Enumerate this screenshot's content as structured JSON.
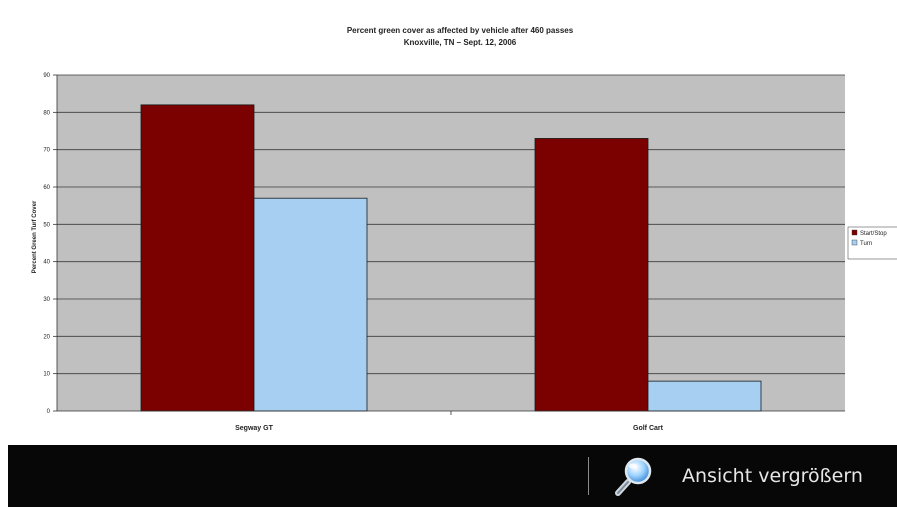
{
  "chart_data": {
    "type": "bar",
    "title": "Percent green cover as affected by vehicle after 460 passes",
    "subtitle": "Knoxville, TN – Sept. 12, 2006",
    "ylabel": "Percent Green Turf Cover",
    "xlabel": "",
    "ylim": [
      0,
      90
    ],
    "yticks": [
      0,
      10,
      20,
      30,
      40,
      50,
      60,
      70,
      80,
      90
    ],
    "categories": [
      "Segway GT",
      "Golf Cart"
    ],
    "series": [
      {
        "name": "Start/Stop",
        "values": [
          82,
          73
        ],
        "color": "#7b0000"
      },
      {
        "name": "Turn",
        "values": [
          57,
          8
        ],
        "color": "#a6cff2"
      }
    ],
    "grid": true,
    "plot_background": "#c0c0c0",
    "legend_position": "right"
  },
  "toolbar": {
    "zoom_label": "Ansicht vergrößern",
    "zoom_icon": "magnifier-icon"
  }
}
